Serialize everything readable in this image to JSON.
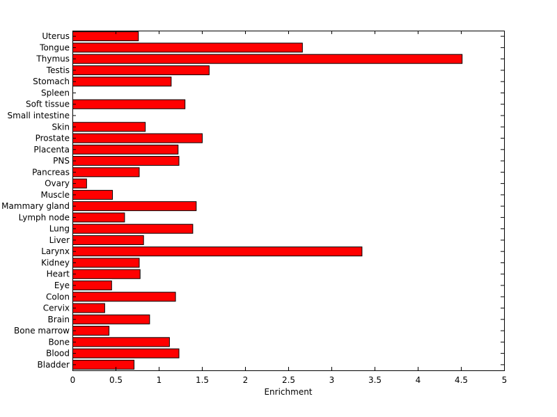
{
  "chart_data": {
    "type": "bar",
    "orientation": "horizontal",
    "title": "",
    "xlabel": "Enrichment",
    "ylabel": "",
    "xlim": [
      0,
      5
    ],
    "xticks": [
      "0",
      "0.5",
      "1",
      "1.5",
      "2",
      "2.5",
      "3",
      "3.5",
      "4",
      "4.5",
      "5"
    ],
    "grid": false,
    "legend": "none",
    "bar_color": "#ff0000",
    "edge_color": "#000000",
    "categories": [
      "Bladder",
      "Blood",
      "Bone",
      "Bone marrow",
      "Brain",
      "Cervix",
      "Colon",
      "Eye",
      "Heart",
      "Kidney",
      "Larynx",
      "Liver",
      "Lung",
      "Lymph node",
      "Mammary gland",
      "Muscle",
      "Ovary",
      "Pancreas",
      "PNS",
      "Placenta",
      "Prostate",
      "Skin",
      "Small intestine",
      "Soft tissue",
      "Spleen",
      "Stomach",
      "Testis",
      "Thymus",
      "Tongue",
      "Uterus"
    ],
    "values": [
      0.71,
      1.23,
      1.12,
      0.42,
      0.89,
      0.37,
      1.19,
      0.45,
      0.78,
      0.77,
      3.35,
      0.82,
      1.39,
      0.6,
      1.43,
      0.46,
      0.16,
      0.77,
      1.23,
      1.22,
      1.5,
      0.84,
      0.0,
      1.3,
      0.0,
      1.14,
      1.58,
      4.51,
      2.66,
      0.76
    ]
  }
}
